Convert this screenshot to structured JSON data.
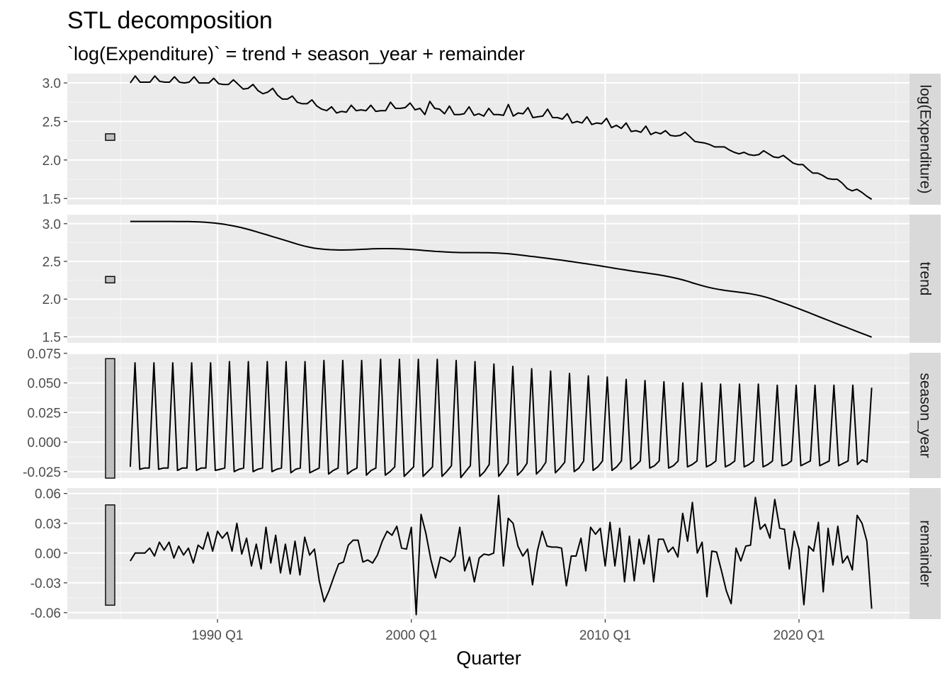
{
  "chart_data": {
    "type": "line",
    "title": "STL decomposition",
    "subtitle": "`log(Expenditure)` = trend + season_year + remainder",
    "xlabel": "Quarter",
    "x_ticks": [
      "1990 Q1",
      "2000 Q1",
      "2010 Q1",
      "2020 Q1"
    ],
    "x_tick_years": [
      1990,
      2000,
      2010,
      2020
    ],
    "x_range": [
      1982.25,
      2025.7
    ],
    "x_start": 1985.5,
    "x_end": 2023.75,
    "grid": true,
    "panels": [
      {
        "name": "log(Expenditure)",
        "ylim": [
          1.42,
          3.12
        ],
        "yticks": [
          1.5,
          2.0,
          2.5,
          3.0
        ],
        "tick_labels": [
          "1.5",
          "2.0",
          "2.5",
          "3.0"
        ],
        "scale_bar": [
          2.255,
          2.34
        ],
        "values": [
          3.0,
          3.09,
          3.01,
          3.01,
          3.01,
          3.09,
          3.02,
          3.01,
          3.01,
          3.08,
          3.01,
          3.0,
          3.01,
          3.08,
          3.0,
          3.0,
          3.0,
          3.06,
          2.99,
          2.98,
          2.98,
          3.04,
          2.98,
          2.92,
          2.93,
          2.98,
          2.9,
          2.86,
          2.88,
          2.93,
          2.84,
          2.79,
          2.79,
          2.83,
          2.75,
          2.73,
          2.73,
          2.78,
          2.7,
          2.66,
          2.64,
          2.69,
          2.61,
          2.63,
          2.62,
          2.71,
          2.64,
          2.65,
          2.64,
          2.71,
          2.63,
          2.64,
          2.64,
          2.75,
          2.67,
          2.67,
          2.68,
          2.74,
          2.65,
          2.67,
          2.59,
          2.76,
          2.67,
          2.66,
          2.6,
          2.7,
          2.59,
          2.59,
          2.6,
          2.69,
          2.58,
          2.6,
          2.57,
          2.67,
          2.59,
          2.59,
          2.58,
          2.72,
          2.57,
          2.61,
          2.6,
          2.68,
          2.55,
          2.56,
          2.57,
          2.66,
          2.55,
          2.55,
          2.53,
          2.6,
          2.48,
          2.5,
          2.48,
          2.56,
          2.46,
          2.48,
          2.47,
          2.54,
          2.42,
          2.45,
          2.41,
          2.48,
          2.37,
          2.38,
          2.36,
          2.44,
          2.33,
          2.36,
          2.34,
          2.38,
          2.32,
          2.31,
          2.32,
          2.36,
          2.3,
          2.24,
          2.23,
          2.22,
          2.2,
          2.17,
          2.17,
          2.17,
          2.13,
          2.1,
          2.08,
          2.1,
          2.07,
          2.06,
          2.07,
          2.12,
          2.08,
          2.04,
          2.03,
          2.06,
          2.01,
          1.96,
          1.94,
          1.94,
          1.88,
          1.83,
          1.83,
          1.8,
          1.76,
          1.75,
          1.75,
          1.7,
          1.63,
          1.6,
          1.62,
          1.58,
          1.53,
          1.49
        ]
      },
      {
        "name": "trend",
        "ylim": [
          1.42,
          3.12
        ],
        "yticks": [
          1.5,
          2.0,
          2.5,
          3.0
        ],
        "tick_labels": [
          "1.5",
          "2.0",
          "2.5",
          "3.0"
        ],
        "scale_bar": [
          2.215,
          2.3
        ],
        "values": [
          3.03,
          3.03,
          3.03,
          3.03,
          3.03,
          3.03,
          3.03,
          3.03,
          3.03,
          3.029,
          3.029,
          3.028,
          3.026,
          3.023,
          3.02,
          3.015,
          3.008,
          3.0,
          2.99,
          2.978,
          2.965,
          2.95,
          2.932,
          2.913,
          2.893,
          2.872,
          2.852,
          2.83,
          2.809,
          2.788,
          2.767,
          2.745,
          2.724,
          2.705,
          2.689,
          2.675,
          2.667,
          2.66,
          2.655,
          2.652,
          2.65,
          2.651,
          2.653,
          2.656,
          2.66,
          2.663,
          2.666,
          2.668,
          2.669,
          2.669,
          2.668,
          2.666,
          2.664,
          2.66,
          2.655,
          2.65,
          2.644,
          2.638,
          2.633,
          2.629,
          2.625,
          2.621,
          2.618,
          2.617,
          2.617,
          2.617,
          2.617,
          2.616,
          2.615,
          2.613,
          2.61,
          2.606,
          2.601,
          2.594,
          2.586,
          2.578,
          2.569,
          2.561,
          2.552,
          2.543,
          2.534,
          2.525,
          2.516,
          2.506,
          2.496,
          2.486,
          2.476,
          2.466,
          2.455,
          2.445,
          2.433,
          2.422,
          2.41,
          2.399,
          2.388,
          2.377,
          2.367,
          2.357,
          2.347,
          2.337,
          2.327,
          2.316,
          2.303,
          2.289,
          2.274,
          2.256,
          2.236,
          2.214,
          2.193,
          2.173,
          2.155,
          2.14,
          2.127,
          2.116,
          2.107,
          2.098,
          2.09,
          2.081,
          2.07,
          2.057,
          2.042,
          2.023,
          2.001,
          1.977,
          1.953,
          1.928,
          1.902,
          1.876,
          1.849,
          1.822,
          1.794,
          1.766,
          1.738,
          1.711,
          1.684,
          1.657,
          1.63,
          1.603,
          1.576,
          1.549,
          1.522,
          1.496
        ]
      },
      {
        "name": "season_year",
        "ylim": [
          -0.0305,
          0.0755
        ],
        "yticks": [
          -0.025,
          0.0,
          0.025,
          0.05,
          0.075
        ],
        "tick_labels": [
          "-0.025",
          "0.000",
          "0.025",
          "0.050",
          "0.075"
        ],
        "scale_bar": [
          -0.0305,
          0.0705
        ],
        "values": [
          -0.021,
          0.067,
          -0.023,
          -0.022,
          -0.022,
          0.067,
          -0.023,
          -0.022,
          -0.022,
          0.067,
          -0.024,
          -0.022,
          -0.022,
          0.067,
          -0.024,
          -0.022,
          -0.022,
          0.067,
          -0.024,
          -0.023,
          -0.022,
          0.068,
          -0.025,
          -0.023,
          -0.022,
          0.068,
          -0.025,
          -0.023,
          -0.022,
          0.068,
          -0.025,
          -0.023,
          -0.022,
          0.068,
          -0.026,
          -0.023,
          -0.022,
          0.068,
          -0.026,
          -0.024,
          -0.022,
          0.069,
          -0.027,
          -0.024,
          -0.022,
          0.069,
          -0.027,
          -0.024,
          -0.022,
          0.069,
          -0.028,
          -0.024,
          -0.022,
          0.07,
          -0.028,
          -0.025,
          -0.021,
          0.07,
          -0.029,
          -0.025,
          -0.021,
          0.07,
          -0.029,
          -0.025,
          -0.021,
          0.07,
          -0.029,
          -0.025,
          -0.02,
          0.069,
          -0.03,
          -0.025,
          -0.02,
          0.068,
          -0.029,
          -0.025,
          -0.019,
          0.066,
          -0.029,
          -0.024,
          -0.018,
          0.064,
          -0.028,
          -0.024,
          -0.018,
          0.062,
          -0.027,
          -0.023,
          -0.017,
          0.06,
          -0.026,
          -0.022,
          -0.017,
          0.058,
          -0.025,
          -0.022,
          -0.016,
          0.056,
          -0.024,
          -0.021,
          -0.016,
          0.055,
          -0.024,
          -0.021,
          -0.016,
          0.053,
          -0.023,
          -0.02,
          -0.016,
          0.052,
          -0.022,
          -0.02,
          -0.016,
          0.051,
          -0.022,
          -0.02,
          -0.016,
          0.05,
          -0.021,
          -0.019,
          -0.016,
          0.05,
          -0.021,
          -0.019,
          -0.016,
          0.049,
          -0.021,
          -0.019,
          -0.016,
          0.049,
          -0.021,
          -0.019,
          -0.016,
          0.049,
          -0.021,
          -0.019,
          -0.016,
          0.048,
          -0.02,
          -0.019,
          -0.016,
          0.048,
          -0.02,
          -0.018,
          -0.016,
          0.048,
          -0.02,
          -0.018,
          -0.016,
          0.048,
          -0.02,
          -0.018,
          -0.016,
          0.048,
          -0.019,
          -0.015,
          -0.017,
          0.046
        ]
      },
      {
        "name": "remainder",
        "ylim": [
          -0.0665,
          0.0655
        ],
        "yticks": [
          -0.06,
          -0.03,
          0.0,
          0.03,
          0.06
        ],
        "tick_labels": [
          "-0.06",
          "-0.03",
          "0.00",
          "0.03",
          "0.06"
        ],
        "scale_bar": [
          -0.0525,
          0.0485
        ],
        "values": [
          -0.008,
          0.0,
          0.0,
          0.0,
          0.005,
          -0.003,
          0.011,
          0.003,
          0.011,
          -0.005,
          0.007,
          -0.002,
          0.005,
          -0.01,
          0.008,
          0.004,
          0.021,
          0.002,
          0.022,
          0.015,
          0.021,
          0.002,
          0.03,
          -0.001,
          0.015,
          -0.013,
          0.009,
          -0.016,
          0.026,
          -0.01,
          0.018,
          -0.02,
          0.009,
          -0.021,
          0.012,
          -0.022,
          0.016,
          -0.002,
          0.004,
          -0.028,
          -0.049,
          -0.038,
          -0.024,
          -0.011,
          -0.009,
          0.008,
          0.013,
          0.013,
          -0.009,
          -0.007,
          -0.01,
          -0.002,
          0.012,
          0.022,
          0.018,
          0.027,
          0.005,
          0.004,
          0.026,
          -0.062,
          0.039,
          0.02,
          -0.006,
          -0.025,
          -0.004,
          -0.006,
          -0.009,
          -0.003,
          0.026,
          -0.018,
          -0.004,
          -0.029,
          -0.005,
          -0.001,
          -0.002,
          0.0,
          0.058,
          -0.013,
          0.035,
          0.03,
          0.007,
          -0.003,
          0.004,
          -0.032,
          0.002,
          0.022,
          0.007,
          0.006,
          0.006,
          0.005,
          -0.033,
          -0.003,
          -0.003,
          0.015,
          -0.018,
          0.026,
          0.019,
          0.025,
          -0.013,
          0.031,
          -0.013,
          0.025,
          -0.029,
          0.017,
          -0.028,
          0.014,
          -0.011,
          0.018,
          -0.029,
          0.014,
          0.014,
          0.001,
          0.006,
          -0.004,
          0.04,
          0.012,
          0.051,
          0.0,
          0.011,
          -0.044,
          0.002,
          0.001,
          -0.018,
          -0.038,
          -0.051,
          0.005,
          -0.008,
          0.007,
          0.008,
          0.056,
          0.024,
          0.029,
          0.015,
          0.054,
          0.025,
          0.024,
          -0.016,
          0.022,
          0.004,
          -0.052,
          0.007,
          0.002,
          0.031,
          -0.039,
          0.025,
          -0.012,
          0.027,
          -0.01,
          -0.003,
          -0.017,
          0.038,
          0.03,
          0.012,
          -0.056
        ]
      }
    ]
  }
}
